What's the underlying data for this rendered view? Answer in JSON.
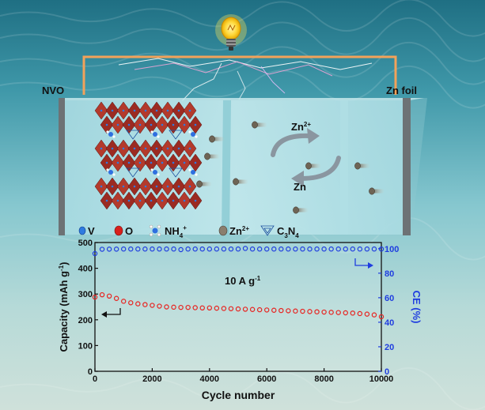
{
  "electrodes": {
    "left": "NVO",
    "right": "Zn foil"
  },
  "cell_labels": {
    "ion": "Zn",
    "ion_charge": "2+",
    "metal": "Zn"
  },
  "legend": [
    {
      "symbol": "V",
      "color": "#2f7be0"
    },
    {
      "symbol": "O",
      "color": "#d8201c"
    },
    {
      "symbol": "NH",
      "sub": "4",
      "sup": "+"
    },
    {
      "symbol": "Zn",
      "sup": "2+",
      "color": "#8a7e6e"
    },
    {
      "symbol": "C",
      "sub": "3",
      "post": "N",
      "sub2": "4"
    }
  ],
  "chart_data": {
    "type": "scatter",
    "annotation": "10 A g",
    "annotation_sup": "-1",
    "xlabel": "Cycle number",
    "ylabel_left": "Capacity (mAh g",
    "ylabel_left_sup": "-1",
    "ylabel_right": "CE (%)",
    "xlim": [
      0,
      10000
    ],
    "ylim_left": [
      0,
      500
    ],
    "ylim_right": [
      0,
      105
    ],
    "x_ticks": [
      "0",
      "2000",
      "4000",
      "6000",
      "8000",
      "10000"
    ],
    "y_left_ticks": [
      "0",
      "100",
      "200",
      "300",
      "400",
      "500"
    ],
    "y_right_ticks": [
      "0",
      "20",
      "40",
      "60",
      "80",
      "100"
    ],
    "colors": {
      "capacity": "#e8221f",
      "ce": "#1f3de0"
    },
    "series": [
      {
        "axis": "left",
        "x": [
          0,
          250,
          500,
          750,
          1000,
          1250,
          1500,
          1750,
          2000,
          2250,
          2500,
          2750,
          3000,
          3250,
          3500,
          3750,
          4000,
          4250,
          4500,
          4750,
          5000,
          5250,
          5500,
          5750,
          6000,
          6250,
          6500,
          6750,
          7000,
          7250,
          7500,
          7750,
          8000,
          8250,
          8500,
          8750,
          9000,
          9250,
          9500,
          9750,
          10000
        ],
        "values": [
          288,
          297,
          292,
          283,
          272,
          266,
          262,
          259,
          256,
          253,
          250,
          249,
          248,
          248,
          247,
          246,
          246,
          245,
          244,
          243,
          242,
          241,
          240,
          239,
          238,
          237,
          236,
          235,
          234,
          233,
          232,
          231,
          230,
          229,
          228,
          227,
          226,
          224,
          222,
          219,
          212
        ]
      },
      {
        "axis": "right",
        "x": [
          0,
          250,
          500,
          750,
          1000,
          1250,
          1500,
          1750,
          2000,
          2250,
          2500,
          2750,
          3000,
          3250,
          3500,
          3750,
          4000,
          4250,
          4500,
          4750,
          5000,
          5250,
          5500,
          5750,
          6000,
          6250,
          6500,
          6750,
          7000,
          7250,
          7500,
          7750,
          8000,
          8250,
          8500,
          8750,
          9000,
          9250,
          9500,
          9750,
          10000
        ],
        "values": [
          96,
          99.5,
          99.6,
          99.6,
          99.7,
          99.7,
          99.7,
          99.7,
          99.7,
          99.7,
          99.7,
          99.7,
          99.2,
          99.7,
          99.7,
          99.7,
          99.7,
          99.7,
          99.7,
          99.7,
          99.7,
          100.2,
          99.7,
          99.7,
          99.7,
          99.7,
          99.7,
          99.7,
          99.7,
          99.7,
          99.7,
          99.7,
          99.7,
          99.7,
          99.7,
          99.7,
          99.7,
          99.7,
          99.7,
          99.7,
          99.7
        ]
      }
    ]
  }
}
